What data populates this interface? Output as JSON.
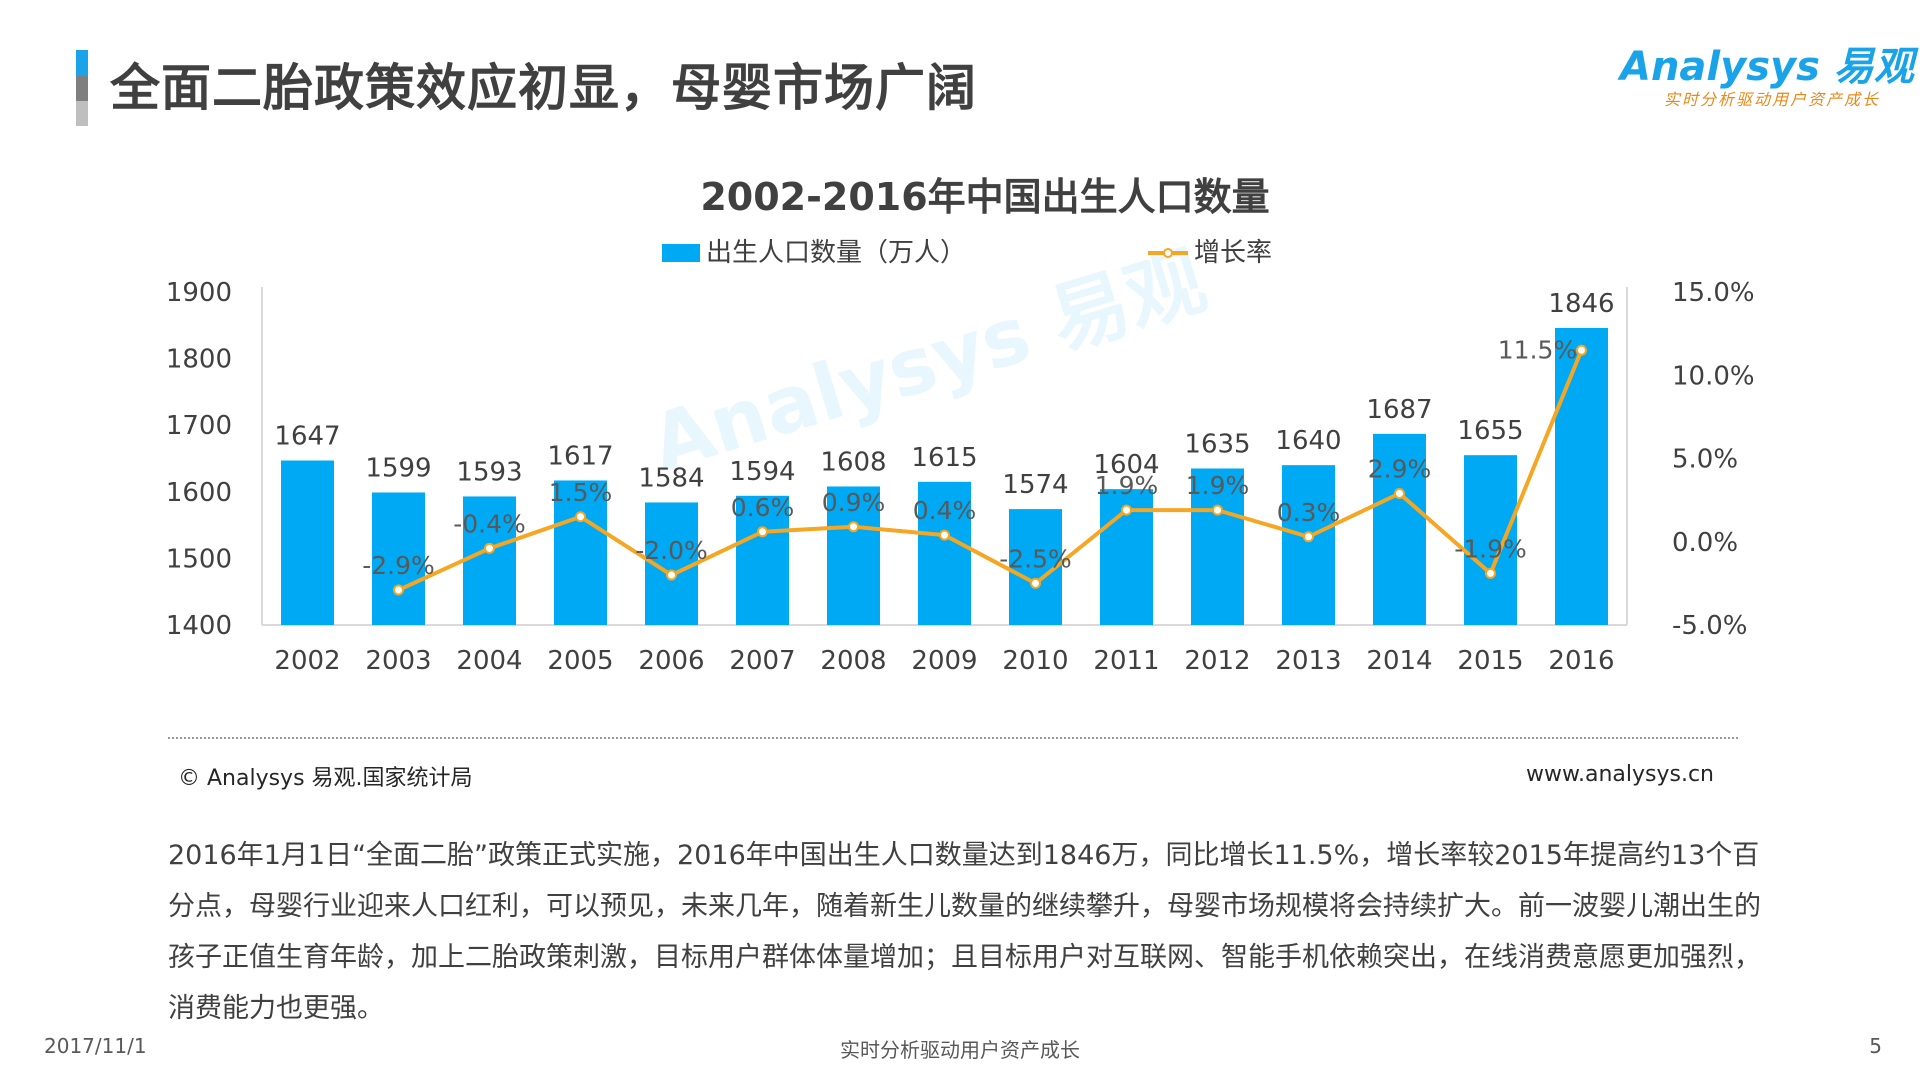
{
  "header": {
    "title": "全面二胎政策效应初显，母婴市场广阔",
    "logo_main": "Analysys 易观",
    "logo_sub": "实时分析驱动用户资产成长"
  },
  "chart_data": {
    "type": "bar",
    "title": "2002-2016年中国出生人口数量",
    "categories": [
      "2002",
      "2003",
      "2004",
      "2005",
      "2006",
      "2007",
      "2008",
      "2009",
      "2010",
      "2011",
      "2012",
      "2013",
      "2014",
      "2015",
      "2016"
    ],
    "series": [
      {
        "name": "出生人口数量（万人）",
        "type": "bar",
        "axis": "left",
        "color": "#00a9f4",
        "values": [
          1647,
          1599,
          1593,
          1617,
          1584,
          1594,
          1608,
          1615,
          1574,
          1604,
          1635,
          1640,
          1687,
          1655,
          1846
        ]
      },
      {
        "name": "增长率",
        "type": "line",
        "axis": "right",
        "color": "#f5a623",
        "values": [
          null,
          -2.9,
          -0.4,
          1.5,
          -2.0,
          0.6,
          0.9,
          0.4,
          -2.5,
          1.9,
          1.9,
          0.3,
          2.9,
          -1.9,
          11.5
        ],
        "labels": [
          null,
          "-2.9%",
          "-0.4%",
          "1.5%",
          "-2.0%",
          "0.6%",
          "0.9%",
          "0.4%",
          "-2.5%",
          "1.9%",
          "1.9%",
          "0.3%",
          "2.9%",
          "-1.9%",
          "11.5%"
        ]
      }
    ],
    "ylim_left": [
      1400,
      1900
    ],
    "yticks_left": [
      "1900",
      "1800",
      "1700",
      "1600",
      "1500",
      "1400"
    ],
    "ylim_right": [
      -5,
      15
    ],
    "yticks_right": [
      "15.0%",
      "10.0%",
      "5.0%",
      "0.0%",
      "-5.0%"
    ],
    "legend_position": "top-center",
    "grid": false
  },
  "watermark": "Analysys 易观",
  "source": {
    "text": "© Analysys 易观.国家统计局",
    "website": "www.analysys.cn"
  },
  "body_text": "2016年1月1日“全面二胎”政策正式实施，2016年中国出生人口数量达到1846万，同比增长11.5%，增长率较2015年提高约13个百分点，母婴行业迎来人口红利，可以预见，未来几年，随着新生儿数量的继续攀升，母婴市场规模将会持续扩大。前一波婴儿潮出生的孩子正值生育年龄，加上二胎政策刺激，目标用户群体体量增加；且目标用户对互联网、智能手机依赖突出，在线消费意愿更加强烈，消费能力也更强。",
  "footer": {
    "date": "2017/11/1",
    "center": "实时分析驱动用户资产成长",
    "page": "5"
  }
}
